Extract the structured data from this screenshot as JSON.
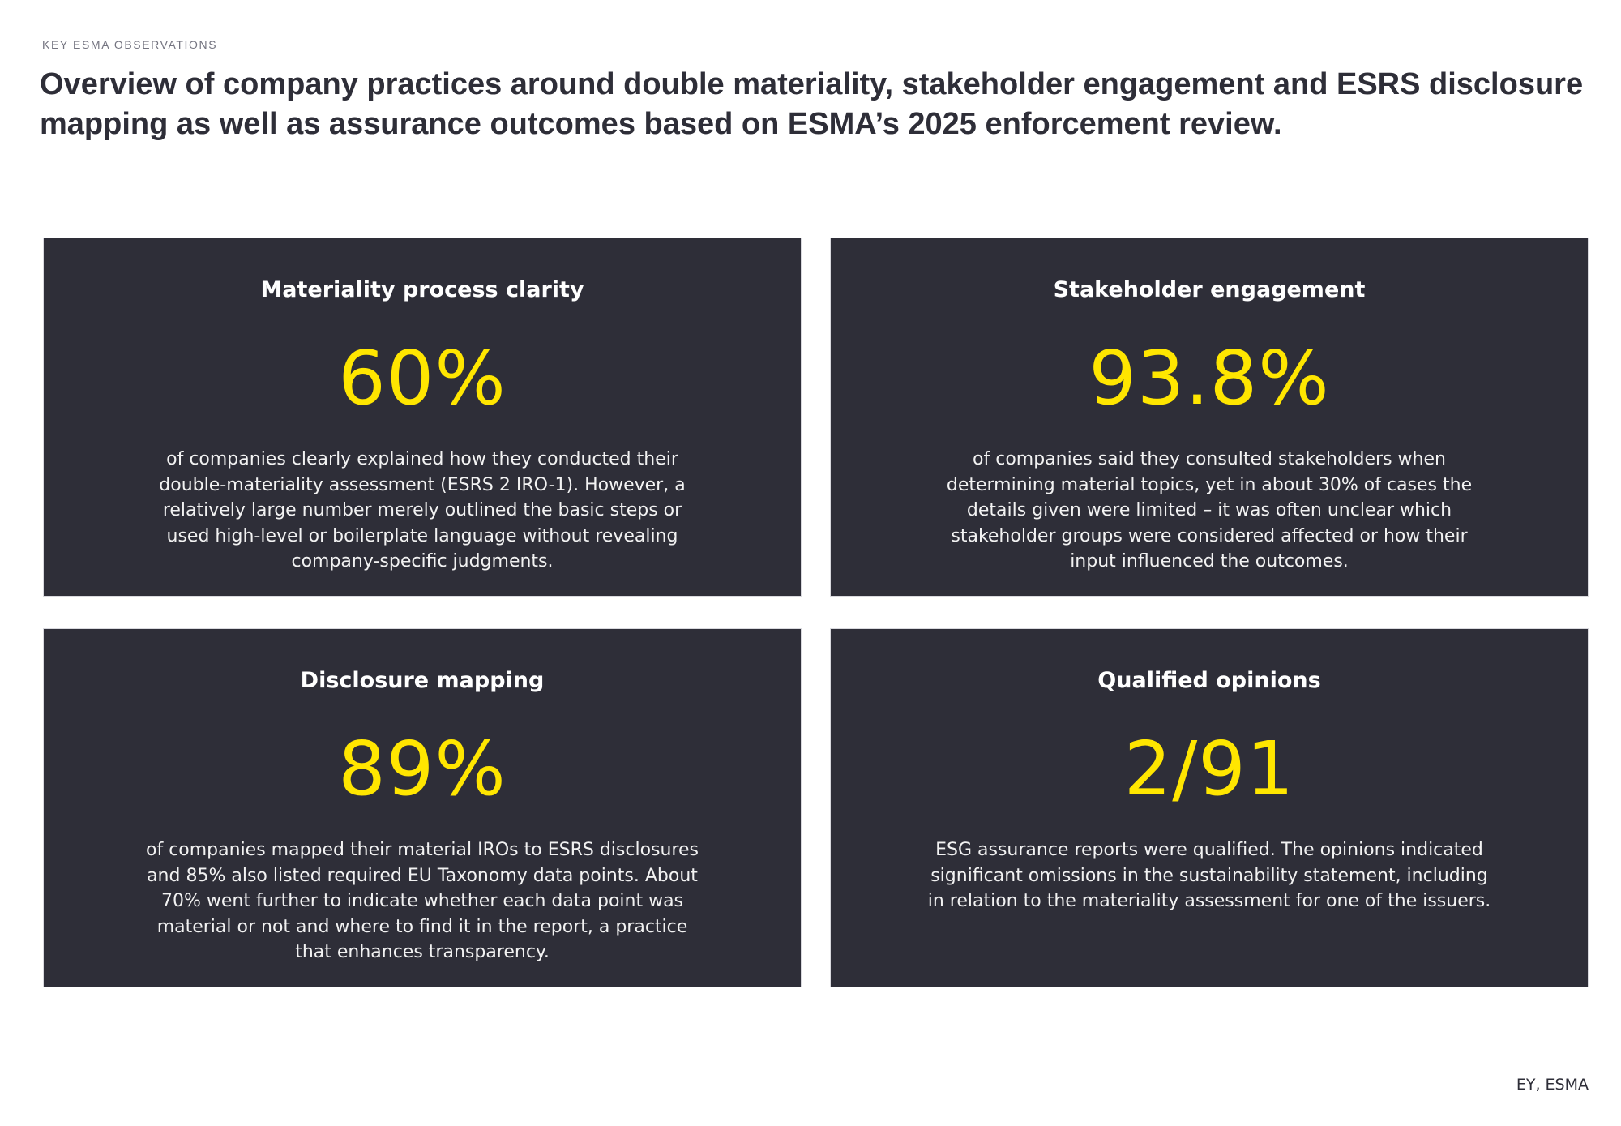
{
  "header": {
    "eyebrow": "KEY ESMA OBSERVATIONS",
    "title": "Overview of company practices around double materiality, stakeholder engagement and ESRS disclosure mapping as well as assurance outcomes based on ESMA’s 2025 enforcement review."
  },
  "cards": [
    {
      "title": "Materiality process clarity",
      "stat": "60%",
      "description": "of companies clearly explained how they conducted their double-materiality assessment (ESRS 2 IRO-1). However, a relatively large number merely outlined the basic steps or used high-level or boilerplate language without revealing company-specific judgments."
    },
    {
      "title": "Stakeholder engagement",
      "stat": "93.8%",
      "description": "of companies said they consulted stakeholders when determining material topics, yet in about 30% of cases the details given were limited – it was often unclear which stakeholder groups were considered affected or how their input influenced the outcomes."
    },
    {
      "title": "Disclosure mapping",
      "stat": "89%",
      "description": "of companies mapped their material IROs to ESRS disclosures and 85% also listed required EU Taxonomy data points. About 70% went further to indicate whether each data point was material or not and where to find it in the report, a practice that enhances transparency."
    },
    {
      "title": "Qualified opinions",
      "stat": "2/91",
      "description": "ESG assurance reports were qualified. The opinions indicated significant omissions in the sustainability statement, including in relation to the materiality assessment for one of the issuers."
    }
  ],
  "footer": {
    "source": "EY, ESMA"
  },
  "colors": {
    "card_background": "#2e2e38",
    "stat_accent": "#ffe600",
    "text_dark": "#2e2e38"
  }
}
